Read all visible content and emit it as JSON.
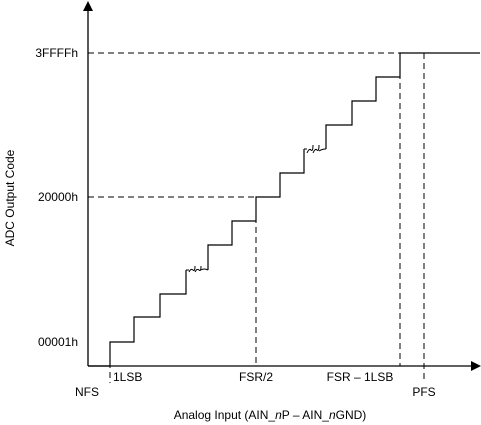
{
  "y_axis": {
    "title": "ADC Output Code",
    "ticks": [
      "3FFFFh",
      "20000h",
      "00001h"
    ]
  },
  "x_axis": {
    "title_parts": [
      "Analog Input (AIN_",
      "n",
      "P – AIN_",
      "n",
      "GND)"
    ],
    "ticks": [
      "NFS",
      "1LSB",
      "FSR/2",
      "FSR – 1LSB",
      "PFS"
    ]
  },
  "colors": {
    "line": "#000000",
    "background": "#ffffff"
  }
}
